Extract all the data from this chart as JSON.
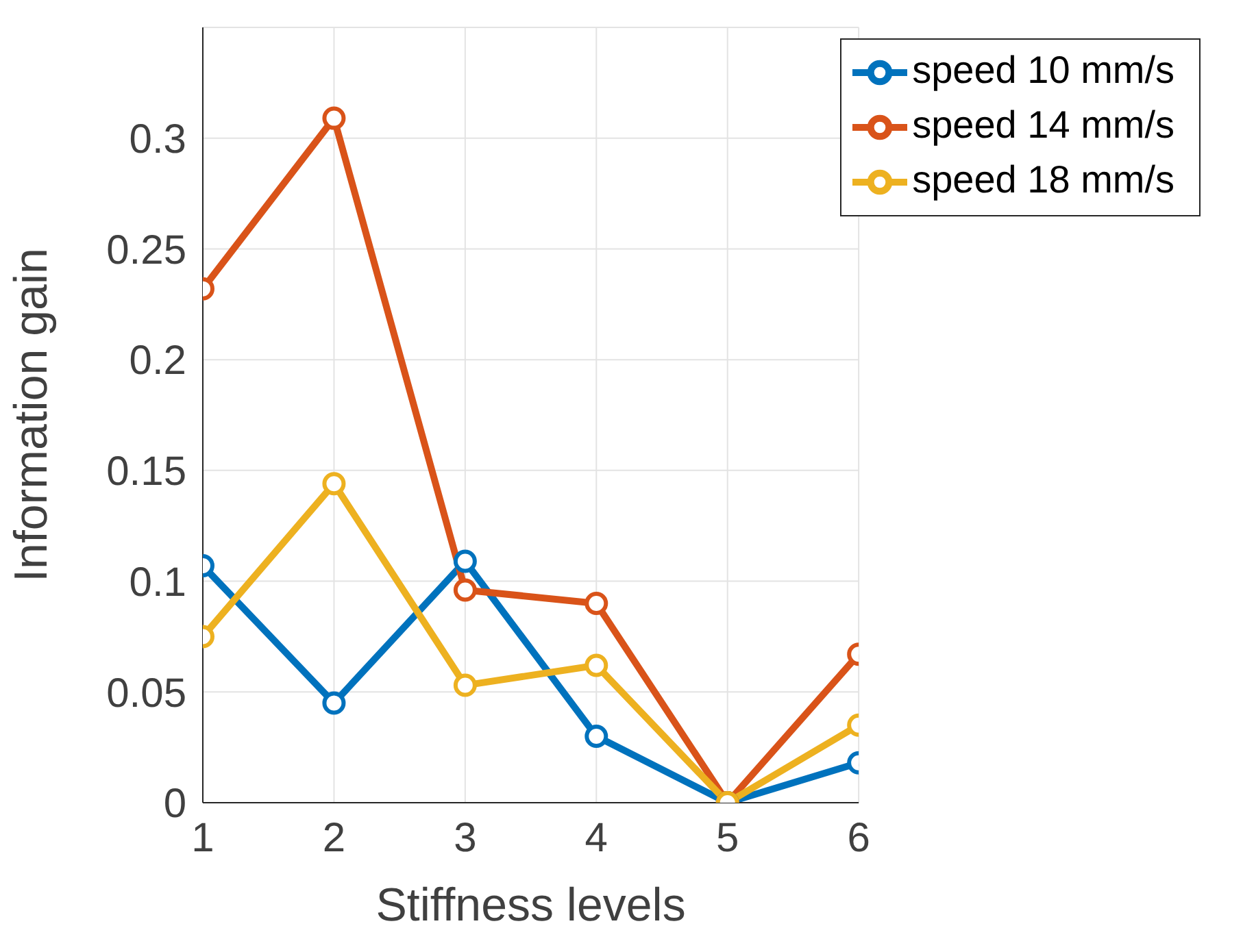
{
  "chart_data": {
    "type": "line",
    "xlabel": "Stiffness levels",
    "ylabel": "Information gain",
    "x": [
      1,
      2,
      3,
      4,
      5,
      6
    ],
    "series": [
      {
        "name": "speed 10 mm/s",
        "color": "#0072bd",
        "values": [
          0.107,
          0.045,
          0.109,
          0.03,
          0,
          0.018
        ]
      },
      {
        "name": "speed 14 mm/s",
        "color": "#d95319",
        "values": [
          0.232,
          0.309,
          0.096,
          0.09,
          0,
          0.067
        ]
      },
      {
        "name": "speed 18 mm/s",
        "color": "#edb120",
        "values": [
          0.075,
          0.144,
          0.053,
          0.062,
          0,
          0.035
        ]
      }
    ],
    "xlim": [
      1,
      6
    ],
    "xticks": [
      1,
      2,
      3,
      4,
      5,
      6
    ],
    "ylim": [
      0,
      0.35
    ],
    "yticks": [
      0,
      0.05,
      0.1,
      0.15,
      0.2,
      0.25,
      0.3
    ],
    "grid": true,
    "legend": "top right",
    "marker": "circle",
    "line_style": "solid"
  }
}
